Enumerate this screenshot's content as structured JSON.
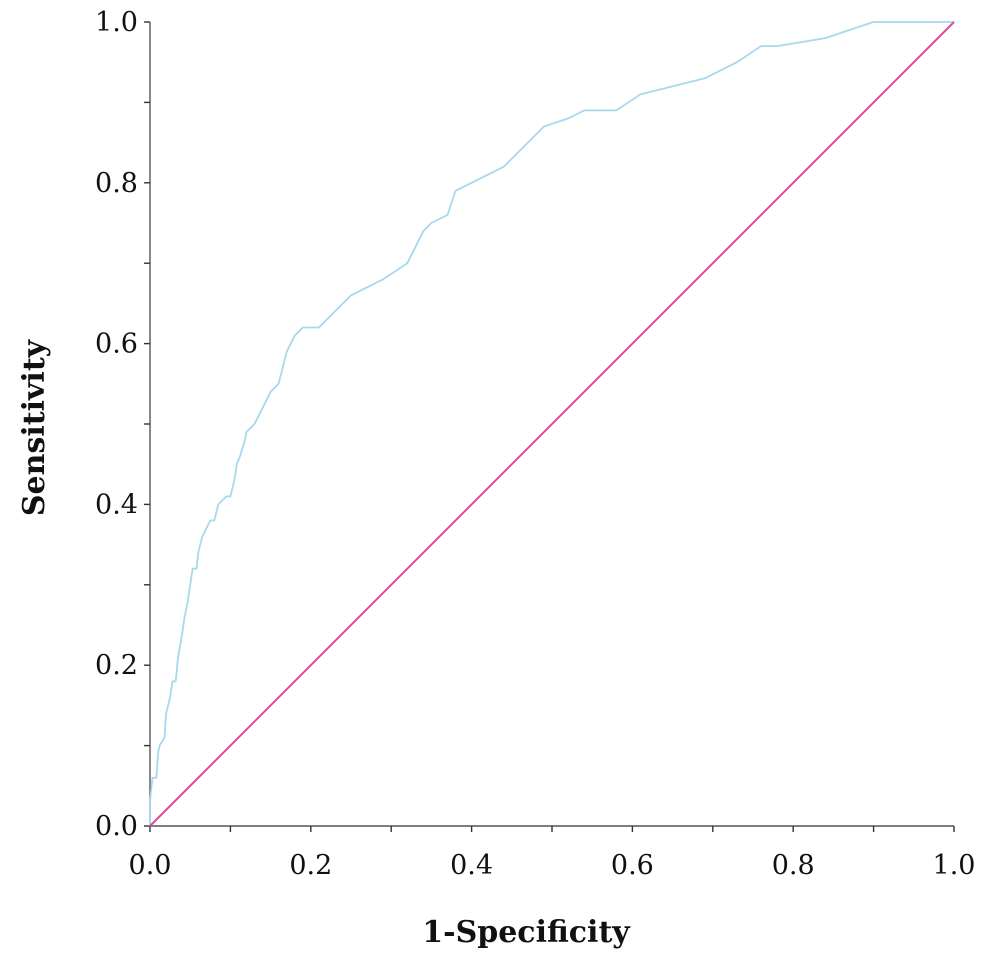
{
  "chart_data": {
    "type": "line",
    "title": "",
    "xlabel": "1-Specificity",
    "ylabel": "Sensitivity",
    "xlim": [
      0,
      1
    ],
    "ylim": [
      0,
      1
    ],
    "x_ticks": [
      "0.0",
      "0.2",
      "0.4",
      "0.6",
      "0.8",
      "1.0"
    ],
    "y_ticks": [
      "0.0",
      "0.2",
      "0.4",
      "0.6",
      "0.8",
      "1.0"
    ],
    "grid": false,
    "legend": "none",
    "series": [
      {
        "color": "#a8d8ee",
        "points": [
          [
            0.0,
            0.0
          ],
          [
            0.0,
            0.03
          ],
          [
            0.003,
            0.06
          ],
          [
            0.008,
            0.06
          ],
          [
            0.01,
            0.09
          ],
          [
            0.012,
            0.1
          ],
          [
            0.018,
            0.11
          ],
          [
            0.02,
            0.14
          ],
          [
            0.025,
            0.16
          ],
          [
            0.028,
            0.18
          ],
          [
            0.032,
            0.18
          ],
          [
            0.035,
            0.21
          ],
          [
            0.04,
            0.24
          ],
          [
            0.043,
            0.26
          ],
          [
            0.047,
            0.28
          ],
          [
            0.05,
            0.3
          ],
          [
            0.053,
            0.32
          ],
          [
            0.058,
            0.32
          ],
          [
            0.06,
            0.34
          ],
          [
            0.065,
            0.36
          ],
          [
            0.07,
            0.37
          ],
          [
            0.075,
            0.38
          ],
          [
            0.08,
            0.38
          ],
          [
            0.085,
            0.4
          ],
          [
            0.095,
            0.41
          ],
          [
            0.1,
            0.41
          ],
          [
            0.105,
            0.43
          ],
          [
            0.108,
            0.45
          ],
          [
            0.112,
            0.46
          ],
          [
            0.118,
            0.48
          ],
          [
            0.12,
            0.49
          ],
          [
            0.13,
            0.5
          ],
          [
            0.135,
            0.51
          ],
          [
            0.14,
            0.52
          ],
          [
            0.15,
            0.54
          ],
          [
            0.16,
            0.55
          ],
          [
            0.165,
            0.57
          ],
          [
            0.17,
            0.59
          ],
          [
            0.175,
            0.6
          ],
          [
            0.18,
            0.61
          ],
          [
            0.19,
            0.62
          ],
          [
            0.21,
            0.62
          ],
          [
            0.22,
            0.63
          ],
          [
            0.23,
            0.64
          ],
          [
            0.24,
            0.65
          ],
          [
            0.25,
            0.66
          ],
          [
            0.27,
            0.67
          ],
          [
            0.29,
            0.68
          ],
          [
            0.32,
            0.7
          ],
          [
            0.34,
            0.74
          ],
          [
            0.35,
            0.75
          ],
          [
            0.37,
            0.76
          ],
          [
            0.38,
            0.79
          ],
          [
            0.4,
            0.8
          ],
          [
            0.44,
            0.82
          ],
          [
            0.49,
            0.87
          ],
          [
            0.52,
            0.88
          ],
          [
            0.54,
            0.89
          ],
          [
            0.58,
            0.89
          ],
          [
            0.61,
            0.91
          ],
          [
            0.69,
            0.93
          ],
          [
            0.73,
            0.95
          ],
          [
            0.76,
            0.97
          ],
          [
            0.78,
            0.97
          ],
          [
            0.84,
            0.98
          ],
          [
            0.87,
            0.99
          ],
          [
            0.9,
            1.0
          ],
          [
            0.93,
            1.0
          ],
          [
            1.0,
            1.0
          ]
        ]
      },
      {
        "color": "#e0479e",
        "points": [
          [
            0,
            0
          ],
          [
            1,
            1
          ]
        ]
      }
    ]
  }
}
